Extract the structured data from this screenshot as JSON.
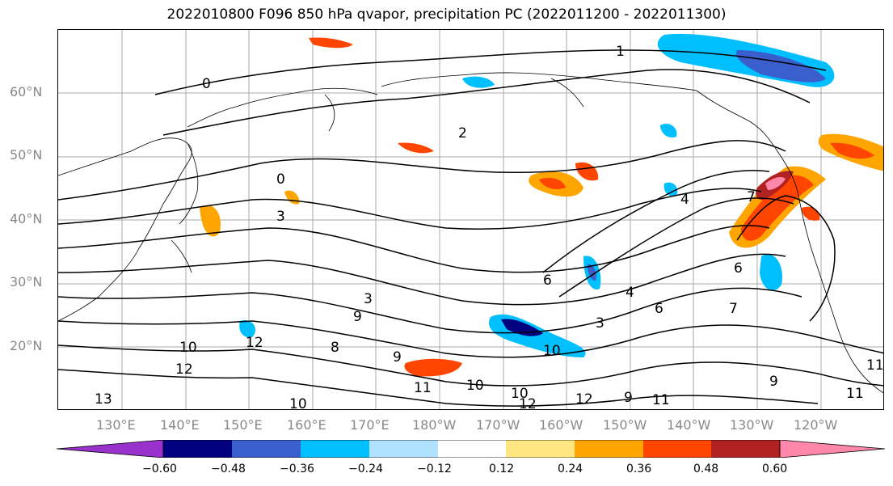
{
  "title": "2022010800 F096 850 hPa qvapor, precipitation PC (2022011200 - 2022011300)",
  "map": {
    "lat_ticks": [
      "60°N",
      "50°N",
      "40°N",
      "30°N",
      "20°N"
    ],
    "lon_ticks": [
      "130°E",
      "140°E",
      "150°E",
      "160°E",
      "170°E",
      "180°W",
      "170°W",
      "160°W",
      "150°W",
      "140°W",
      "130°W",
      "120°W"
    ],
    "contour_labels": [
      "1",
      "0",
      "2",
      "0",
      "3",
      "4",
      "6",
      "3",
      "3",
      "9",
      "6",
      "4",
      "7",
      "6",
      "7",
      "10",
      "12",
      "12",
      "8",
      "9",
      "12",
      "10",
      "13",
      "10",
      "9",
      "10",
      "11",
      "10",
      "12",
      "11",
      "9",
      "11",
      "11"
    ]
  },
  "colorbar": {
    "ticks": [
      "−0.60",
      "−0.48",
      "−0.36",
      "−0.24",
      "−0.12",
      "0.12",
      "0.24",
      "0.36",
      "0.48",
      "0.60"
    ],
    "colors": [
      "#9932cc",
      "#000080",
      "#3a5fcd",
      "#00bfff",
      "#b0e2ff",
      "#ffffff",
      "#ffe680",
      "#ffa500",
      "#ff4500",
      "#b22222",
      "#ff88aa"
    ]
  }
}
